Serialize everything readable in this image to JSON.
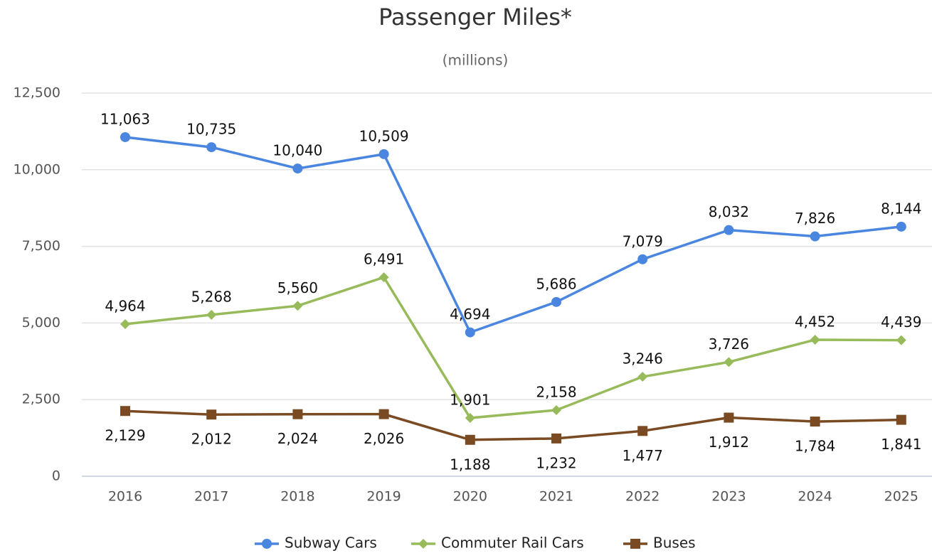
{
  "chart_data": {
    "type": "line",
    "title": "Passenger Miles*",
    "subtitle": "(millions)",
    "categories": [
      "2016",
      "2017",
      "2018",
      "2019",
      "2020",
      "2021",
      "2022",
      "2023",
      "2024",
      "2025"
    ],
    "ylim": [
      0,
      12500
    ],
    "yticks": [
      0,
      {
        "value": 2500,
        "label": "2,500"
      },
      {
        "value": 5000,
        "label": "5,000"
      },
      {
        "value": 7500,
        "label": "7,500"
      },
      {
        "value": 10000,
        "label": "10,000"
      },
      {
        "value": 12500,
        "label": "12,500"
      }
    ],
    "grid": true,
    "legend": "bottom",
    "series": [
      {
        "name": "Subway Cars",
        "color": "#4a86e0",
        "marker": "circle",
        "values": [
          11063,
          10735,
          10040,
          10509,
          4694,
          5686,
          7079,
          8032,
          7826,
          8144
        ],
        "value_labels": [
          "11,063",
          "10,735",
          "10,040",
          "10,509",
          "4,694",
          "5,686",
          "7,079",
          "8,032",
          "7,826",
          "8,144"
        ]
      },
      {
        "name": "Commuter Rail Cars",
        "color": "#97bb5a",
        "marker": "diamond",
        "values": [
          4964,
          5268,
          5560,
          6491,
          1901,
          2158,
          3246,
          3726,
          4452,
          4439
        ],
        "value_labels": [
          "4,964",
          "5,268",
          "5,560",
          "6,491",
          "1,901",
          "2,158",
          "3,246",
          "3,726",
          "4,452",
          "4,439"
        ]
      },
      {
        "name": "Buses",
        "color": "#7a4a22",
        "marker": "square",
        "values": [
          2129,
          2012,
          2024,
          2026,
          1188,
          1232,
          1477,
          1912,
          1784,
          1841
        ],
        "value_labels": [
          "2,129",
          "2,012",
          "2,024",
          "2,026",
          "1,188",
          "1,232",
          "1,477",
          "1,912",
          "1,784",
          "1,841"
        ]
      }
    ]
  }
}
